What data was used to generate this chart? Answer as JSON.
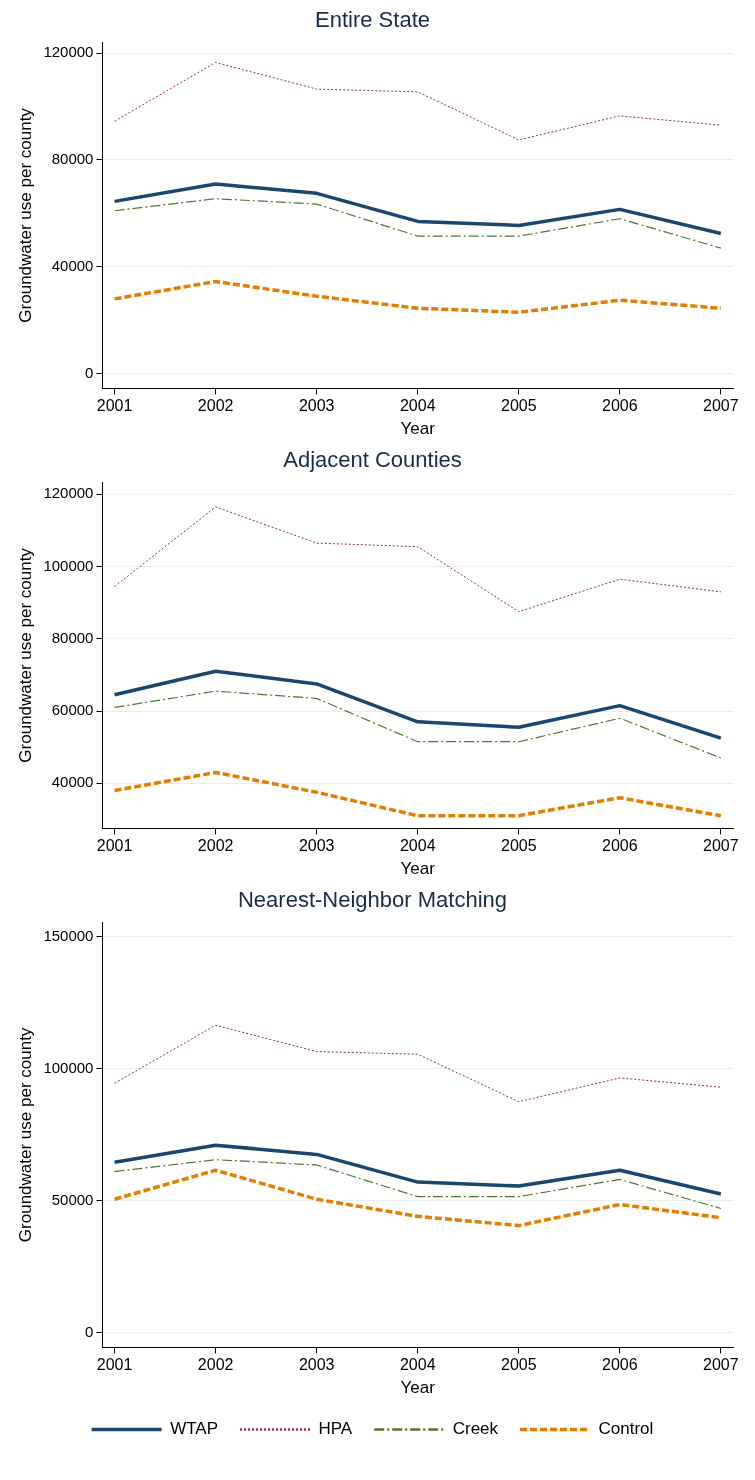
{
  "chart_data": [
    {
      "type": "line",
      "title": "Entire State",
      "xlabel": "Year",
      "ylabel": "Groundwater use per county",
      "x": [
        2001,
        2002,
        2003,
        2004,
        2005,
        2006,
        2007
      ],
      "xlim": [
        2000.88,
        2007.12
      ],
      "xticks": [
        2001,
        2002,
        2003,
        2004,
        2005,
        2006,
        2007
      ],
      "ylim": [
        -5500,
        124000
      ],
      "yticks": [
        0,
        40000,
        80000,
        120000
      ],
      "grid": "y",
      "legend": false,
      "marker": "none",
      "series": [
        {
          "color": "#1a476f",
          "line_style": "solid",
          "values": [
            64500,
            71000,
            67500,
            57000,
            55500,
            61500,
            52500
          ]
        },
        {
          "color": "#90353b",
          "line_style": "dotted",
          "values": [
            94500,
            116500,
            106500,
            105500,
            87500,
            96500,
            93000
          ]
        },
        {
          "color": "#55752f",
          "line_style": "dashed",
          "values": [
            61000,
            65500,
            63500,
            51500,
            51500,
            58000,
            47000
          ]
        },
        {
          "color": "#e37e00",
          "line_style": "dashed",
          "values": [
            28000,
            34500,
            29000,
            24500,
            23000,
            27500,
            24500
          ]
        }
      ]
    },
    {
      "type": "line",
      "title": "Adjacent Counties",
      "xlabel": "Year",
      "ylabel": "Groundwater use per county",
      "x": [
        2001,
        2002,
        2003,
        2004,
        2005,
        2006,
        2007
      ],
      "xlim": [
        2000.88,
        2007.12
      ],
      "xticks": [
        2001,
        2002,
        2003,
        2004,
        2005,
        2006,
        2007
      ],
      "ylim": [
        27500,
        123300
      ],
      "yticks": [
        40000,
        60000,
        80000,
        100000,
        120000
      ],
      "grid": "y",
      "legend": false,
      "marker": "none",
      "series": [
        {
          "color": "#1a476f",
          "line_style": "solid",
          "values": [
            64500,
            71000,
            67500,
            57000,
            55500,
            61500,
            52500
          ]
        },
        {
          "color": "#90353b",
          "line_style": "dotted",
          "values": [
            94500,
            116500,
            106500,
            105500,
            87500,
            96500,
            93000
          ]
        },
        {
          "color": "#55752f",
          "line_style": "dashed",
          "values": [
            61000,
            65500,
            63500,
            51500,
            51500,
            58000,
            47000
          ]
        },
        {
          "color": "#e37e00",
          "line_style": "dashed",
          "values": [
            38000,
            43000,
            37500,
            31000,
            31000,
            36000,
            31000
          ]
        }
      ]
    },
    {
      "type": "line",
      "title": "Nearest-Neighbor Matching",
      "xlabel": "Year",
      "ylabel": "Groundwater use per county",
      "x": [
        2001,
        2002,
        2003,
        2004,
        2005,
        2006,
        2007
      ],
      "xlim": [
        2000.88,
        2007.12
      ],
      "xticks": [
        2001,
        2002,
        2003,
        2004,
        2005,
        2006,
        2007
      ],
      "ylim": [
        -5700,
        155500
      ],
      "yticks": [
        0,
        50000,
        100000,
        150000
      ],
      "grid": "y",
      "legend": "bottom",
      "marker": "none",
      "series": [
        {
          "name": "WTAP",
          "color": "#1a476f",
          "line_style": "solid",
          "values": [
            64500,
            71000,
            67500,
            57000,
            55500,
            61500,
            52500
          ]
        },
        {
          "name": "HPA",
          "color": "#90353b",
          "line_style": "dotted",
          "values": [
            94500,
            116500,
            106500,
            105500,
            87500,
            96500,
            93000
          ]
        },
        {
          "name": "Creek",
          "color": "#55752f",
          "line_style": "dashed",
          "values": [
            61000,
            65500,
            63500,
            51500,
            51500,
            58000,
            47000
          ]
        },
        {
          "name": "Control",
          "color": "#e37e00",
          "line_style": "dashed",
          "values": [
            50500,
            61500,
            50500,
            44000,
            40500,
            48500,
            43500
          ]
        }
      ]
    }
  ]
}
